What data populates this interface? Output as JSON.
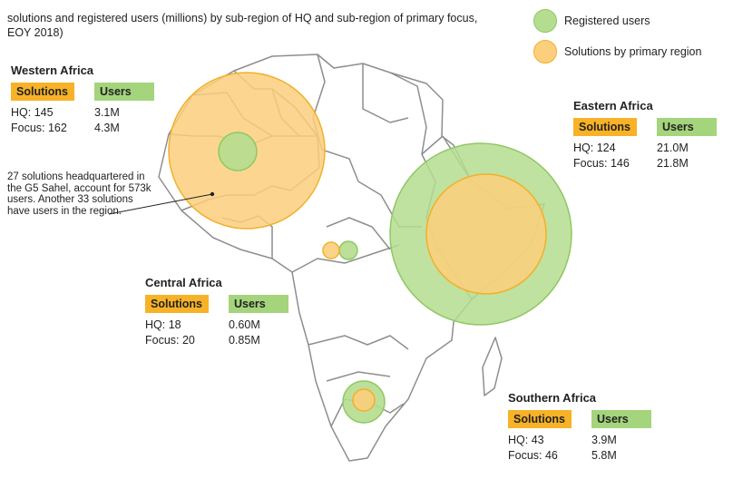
{
  "title": "solutions and registered users (millions) by sub-region of HQ and sub-region of primary focus, EOY 2018)",
  "legend": {
    "users_label": "Registered users",
    "solutions_label": "Solutions by primary region"
  },
  "colors": {
    "users_fill": "#b5dd8f",
    "users_stroke": "#8fc862",
    "solutions_fill": "#fbcf7c",
    "solutions_stroke": "#f2b02a",
    "map_stroke": "#8e8e8e",
    "tag_solutions": "#f7b227",
    "tag_users": "#a4d47b"
  },
  "panels": {
    "western": {
      "name": "Western Africa",
      "solutions_tag": "Solutions",
      "users_tag": "Users",
      "hq_label": "HQ: 145",
      "hq_users": "3.1M",
      "focus_label": "Focus: 162",
      "focus_users": "4.3M"
    },
    "eastern": {
      "name": "Eastern Africa",
      "solutions_tag": "Solutions",
      "users_tag": "Users",
      "hq_label": "HQ: 124",
      "hq_users": "21.0M",
      "focus_label": "Focus: 146",
      "focus_users": "21.8M"
    },
    "central": {
      "name": "Central Africa",
      "solutions_tag": "Solutions",
      "users_tag": "Users",
      "hq_label": "HQ: 18",
      "hq_users": "0.60M",
      "focus_label": "Focus: 20",
      "focus_users": "0.85M"
    },
    "southern": {
      "name": "Southern Africa",
      "solutions_tag": "Solutions",
      "users_tag": "Users",
      "hq_label": "HQ: 43",
      "hq_users": "3.9M",
      "focus_label": "Focus: 46",
      "focus_users": "5.8M"
    }
  },
  "callout": "27 solutions headquartered in the G5 Sahel, account for 573k users. Another 33 solutions have users in the region.",
  "chart_data": {
    "type": "bubble-map",
    "regions": [
      {
        "region": "Western Africa",
        "solutions_hq": 145,
        "solutions_focus": 162,
        "users_hq_millions": 3.1,
        "users_focus_millions": 4.3
      },
      {
        "region": "Eastern Africa",
        "solutions_hq": 124,
        "solutions_focus": 146,
        "users_hq_millions": 21.0,
        "users_focus_millions": 21.8
      },
      {
        "region": "Central Africa",
        "solutions_hq": 18,
        "solutions_focus": 20,
        "users_hq_millions": 0.6,
        "users_focus_millions": 0.85
      },
      {
        "region": "Southern Africa",
        "solutions_hq": 43,
        "solutions_focus": 46,
        "users_hq_millions": 3.9,
        "users_focus_millions": 5.8
      }
    ],
    "sahel": {
      "solutions_hq": 27,
      "users_thousands": 573,
      "solutions_with_users": 33
    }
  }
}
